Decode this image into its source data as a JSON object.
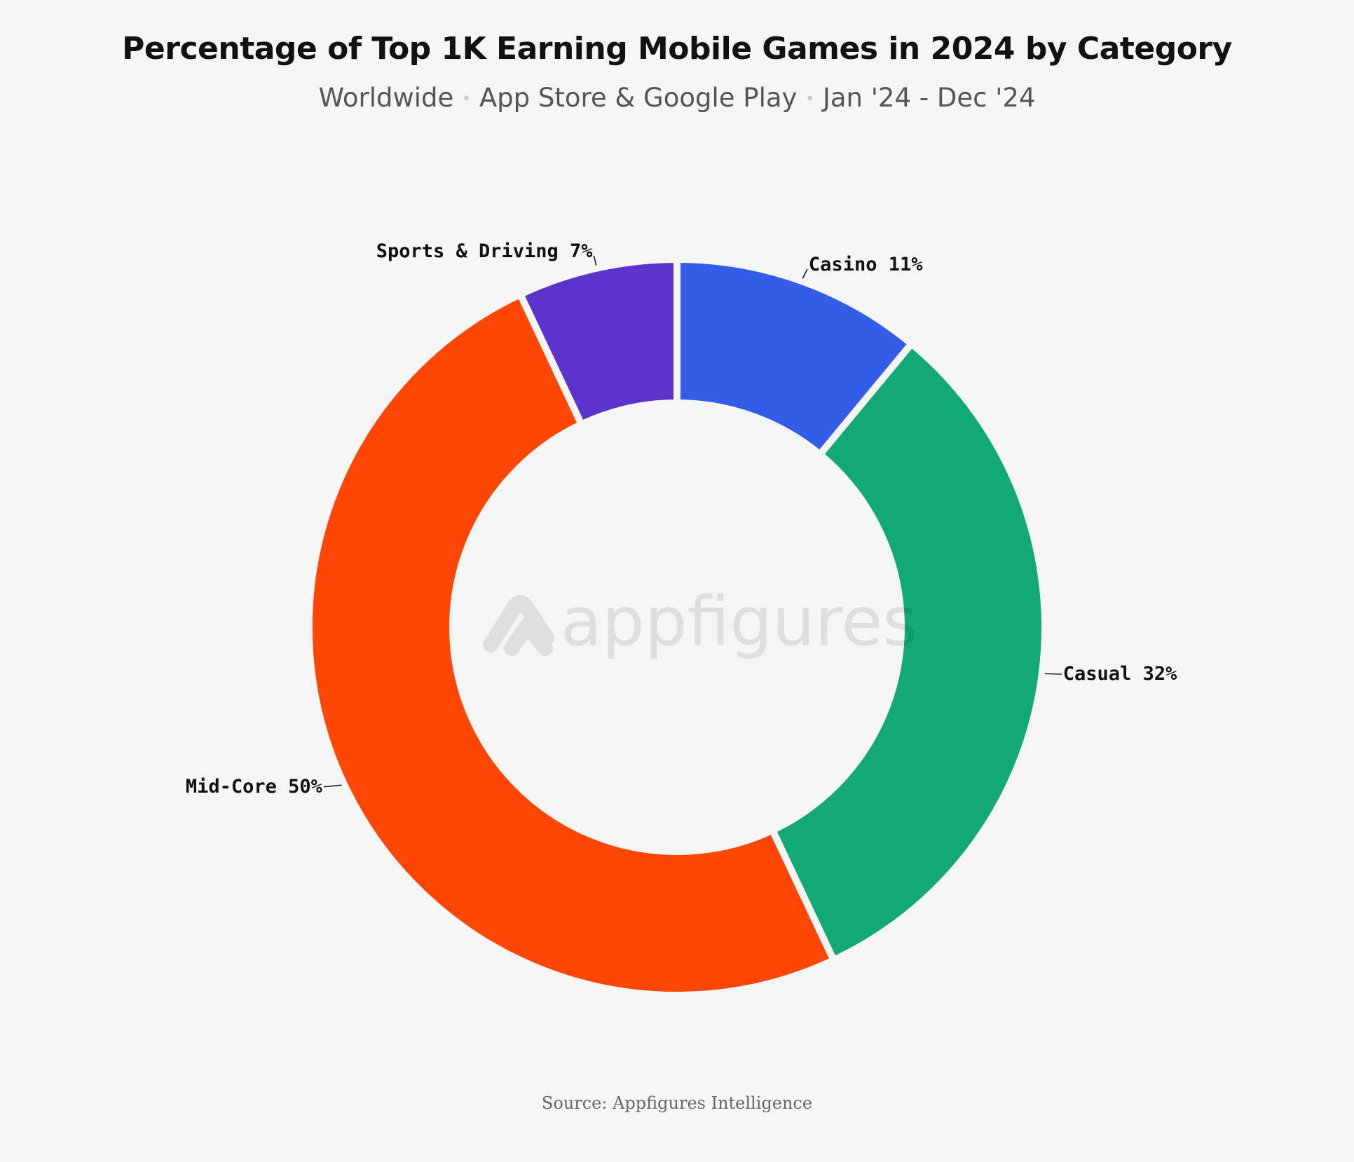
{
  "title": "Percentage of Top 1K Earning Mobile Games in 2024 by Category",
  "subtitle": {
    "parts": [
      "Worldwide",
      "App Store & Google Play",
      "Jan '24 - Dec '24"
    ],
    "separator": "•"
  },
  "source": "Source: Appfigures Intelligence",
  "watermark": {
    "text": "appfigures",
    "icon": "appfigures-logo-icon"
  },
  "colors": {
    "background": "#f5f5f5",
    "Casino": "#335de6",
    "Casual": "#12a974",
    "Mid-Core": "#ff4705",
    "Sports & Driving": "#5c33cc"
  },
  "chart_data": {
    "type": "pie",
    "donut": true,
    "start_position": "12 o'clock",
    "direction": "clockwise",
    "slices": [
      {
        "label": "Casino",
        "value": 11,
        "value_label": "11%",
        "color": "#335de6"
      },
      {
        "label": "Casual",
        "value": 32,
        "value_label": "32%",
        "color": "#12a974"
      },
      {
        "label": "Mid-Core",
        "value": 50,
        "value_label": "50%",
        "color": "#ff4705"
      },
      {
        "label": "Sports & Driving",
        "value": 7,
        "value_label": "7%",
        "color": "#5c33cc"
      }
    ]
  }
}
